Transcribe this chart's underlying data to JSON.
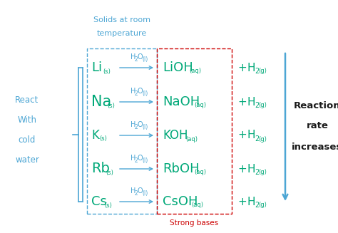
{
  "bg_color": "#ffffff",
  "blue_color": "#4da6d4",
  "green_color": "#00a878",
  "red_color": "#cc0000",
  "black_color": "#1a1a1a",
  "elements": [
    "Li",
    "Na",
    "K",
    "Rb",
    "Cs"
  ],
  "products": [
    "LiOH",
    "NaOH",
    "KOH",
    "RbOH",
    "CsOH"
  ],
  "label_left_title1": "Solids at room",
  "label_left_title2": "temperature",
  "label_react1": "React",
  "label_react2": "With",
  "label_react3": "cold",
  "label_react4": "water",
  "label_strong_bases": "Strong bases",
  "label_reaction_rate1": "Reaction",
  "label_reaction_rate2": "rate",
  "label_reaction_rate3": "increases",
  "figsize": [
    4.74,
    3.27
  ],
  "dpi": 100,
  "elem_font_sizes": {
    "Li": 13,
    "Na": 15,
    "K": 12,
    "Rb": 14,
    "Cs": 13
  },
  "prod_font_sizes": {
    "LiOH": 13,
    "NaOH": 13,
    "KOH": 12,
    "RbOH": 13,
    "CsOH": 13
  }
}
